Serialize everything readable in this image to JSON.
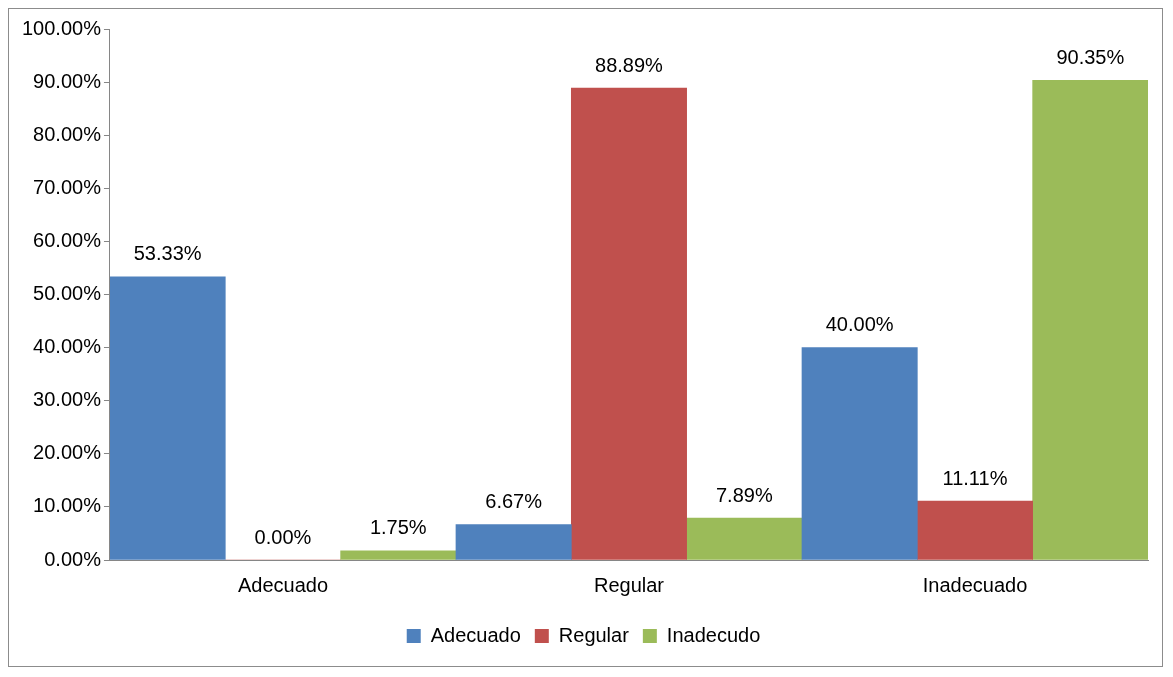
{
  "chart_data": {
    "type": "bar",
    "categories": [
      "Adecuado",
      "Regular",
      "Inadecuado"
    ],
    "series": [
      {
        "name": "Adecuado",
        "color": "#4f81bd",
        "values": [
          53.33,
          6.67,
          40.0
        ],
        "value_labels": [
          "53.33%",
          "6.67%",
          "40.00%"
        ]
      },
      {
        "name": "Regular",
        "color": "#c0504d",
        "values": [
          0.0,
          88.89,
          11.11
        ],
        "value_labels": [
          "0.00%",
          "88.89%",
          "11.11%"
        ]
      },
      {
        "name": "Inadecudo",
        "color": "#9bbb59",
        "values": [
          1.75,
          7.89,
          90.35
        ],
        "value_labels": [
          "1.75%",
          "7.89%",
          "90.35%"
        ]
      }
    ],
    "ylim": [
      0,
      100
    ],
    "yticks": [
      {
        "value": 0,
        "label": "0.00%"
      },
      {
        "value": 10,
        "label": "10.00%"
      },
      {
        "value": 20,
        "label": "20.00%"
      },
      {
        "value": 30,
        "label": "30.00%"
      },
      {
        "value": 40,
        "label": "40.00%"
      },
      {
        "value": 50,
        "label": "50.00%"
      },
      {
        "value": 60,
        "label": "60.00%"
      },
      {
        "value": 70,
        "label": "70.00%"
      },
      {
        "value": 80,
        "label": "80.00%"
      },
      {
        "value": 90,
        "label": "90.00%"
      },
      {
        "value": 100,
        "label": "100.00%"
      }
    ],
    "grid": false,
    "legend": "bottom"
  }
}
